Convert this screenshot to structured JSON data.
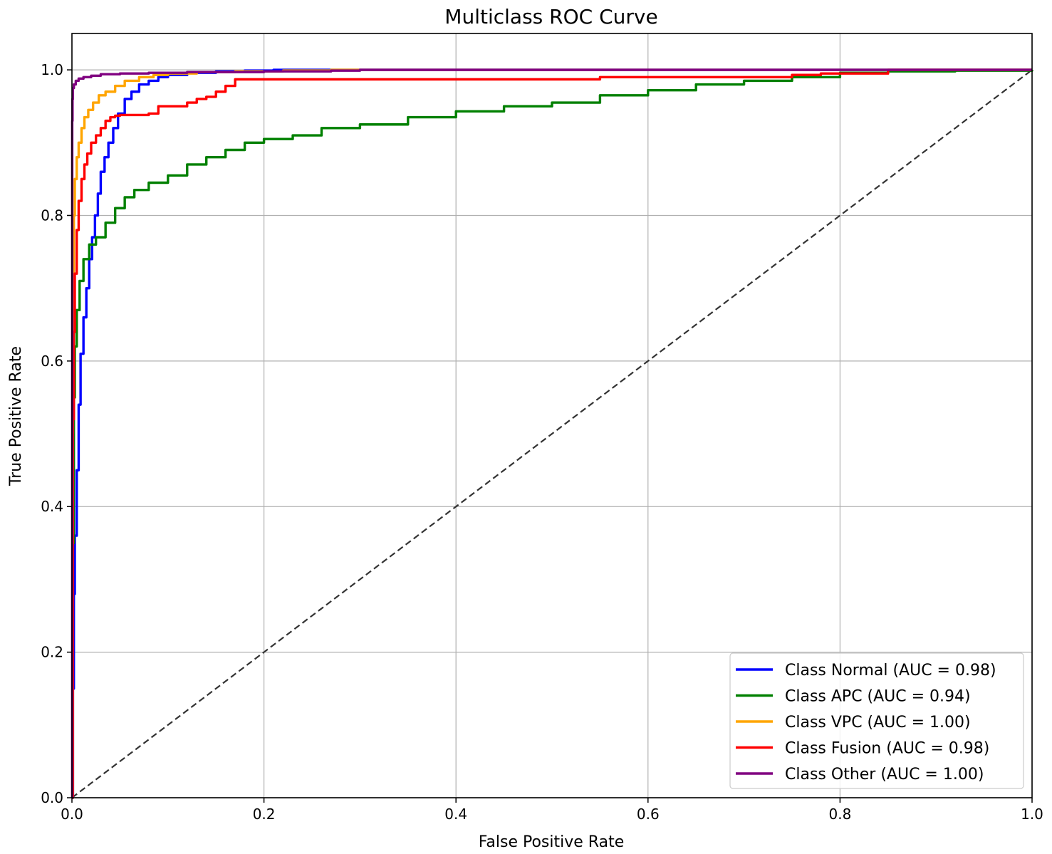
{
  "chart_data": {
    "type": "line",
    "title": "Multiclass ROC Curve",
    "xlabel": "False Positive Rate",
    "ylabel": "True Positive Rate",
    "xlim": [
      0.0,
      1.0
    ],
    "ylim": [
      0.0,
      1.05
    ],
    "xticks": [
      0.0,
      0.2,
      0.4,
      0.6,
      0.8,
      1.0
    ],
    "xtick_labels": [
      "0.0",
      "0.2",
      "0.4",
      "0.6",
      "0.8",
      "1.0"
    ],
    "yticks": [
      0.0,
      0.2,
      0.4,
      0.6,
      0.8,
      1.0
    ],
    "ytick_labels": [
      "0.0",
      "0.2",
      "0.4",
      "0.6",
      "0.8",
      "1.0"
    ],
    "grid": true,
    "legend_position": "lower-right",
    "reference_line": {
      "x": [
        0,
        1
      ],
      "y": [
        0,
        1
      ],
      "style": "dashed",
      "color": "#333333"
    },
    "series": [
      {
        "name": "Class Normal (AUC = 0.98)",
        "color": "#0000ff",
        "x": [
          0,
          0.001,
          0.002,
          0.003,
          0.005,
          0.007,
          0.009,
          0.012,
          0.015,
          0.018,
          0.021,
          0.024,
          0.027,
          0.03,
          0.034,
          0.038,
          0.043,
          0.048,
          0.055,
          0.062,
          0.07,
          0.08,
          0.09,
          0.1,
          0.12,
          0.15,
          0.18,
          0.21,
          0.25,
          0.3,
          0.4,
          1.0
        ],
        "y": [
          0,
          0.15,
          0.28,
          0.36,
          0.45,
          0.54,
          0.61,
          0.66,
          0.7,
          0.74,
          0.77,
          0.8,
          0.83,
          0.86,
          0.88,
          0.9,
          0.92,
          0.94,
          0.96,
          0.97,
          0.98,
          0.985,
          0.99,
          0.993,
          0.996,
          0.998,
          0.999,
          1.0,
          1.0,
          1.0,
          1.0,
          1.0
        ]
      },
      {
        "name": "Class APC (AUC = 0.94)",
        "color": "#008000",
        "x": [
          0,
          0.001,
          0.002,
          0.003,
          0.005,
          0.008,
          0.012,
          0.018,
          0.025,
          0.035,
          0.045,
          0.055,
          0.065,
          0.08,
          0.1,
          0.12,
          0.14,
          0.16,
          0.18,
          0.2,
          0.23,
          0.26,
          0.3,
          0.35,
          0.4,
          0.45,
          0.5,
          0.55,
          0.6,
          0.65,
          0.7,
          0.75,
          0.8,
          0.85,
          0.92,
          1.0
        ],
        "y": [
          0,
          0.35,
          0.55,
          0.62,
          0.67,
          0.71,
          0.74,
          0.76,
          0.77,
          0.79,
          0.81,
          0.825,
          0.835,
          0.845,
          0.855,
          0.87,
          0.88,
          0.89,
          0.9,
          0.905,
          0.91,
          0.92,
          0.925,
          0.935,
          0.943,
          0.95,
          0.955,
          0.965,
          0.972,
          0.98,
          0.985,
          0.99,
          0.996,
          0.998,
          0.999,
          1.0
        ]
      },
      {
        "name": "Class VPC (AUC = 1.00)",
        "color": "#ffa500",
        "x": [
          0,
          0.0005,
          0.001,
          0.002,
          0.003,
          0.005,
          0.007,
          0.01,
          0.013,
          0.017,
          0.022,
          0.028,
          0.035,
          0.045,
          0.055,
          0.07,
          0.085,
          0.1,
          0.13,
          0.17,
          0.22,
          0.27,
          1.0
        ],
        "y": [
          0,
          0.5,
          0.7,
          0.8,
          0.85,
          0.88,
          0.9,
          0.92,
          0.935,
          0.945,
          0.955,
          0.965,
          0.97,
          0.978,
          0.985,
          0.99,
          0.993,
          0.995,
          0.997,
          0.998,
          0.999,
          1.0,
          1.0
        ]
      },
      {
        "name": "Class Fusion (AUC = 0.98)",
        "color": "#ff0000",
        "x": [
          0,
          0.001,
          0.002,
          0.003,
          0.005,
          0.007,
          0.01,
          0.013,
          0.016,
          0.02,
          0.025,
          0.03,
          0.035,
          0.04,
          0.045,
          0.05,
          0.055,
          0.06,
          0.07,
          0.08,
          0.09,
          0.1,
          0.12,
          0.13,
          0.14,
          0.15,
          0.16,
          0.17,
          0.2,
          0.3,
          0.4,
          0.55,
          0.6,
          0.7,
          0.75,
          0.78,
          0.85,
          1.0
        ],
        "y": [
          0,
          0.52,
          0.64,
          0.72,
          0.78,
          0.82,
          0.85,
          0.87,
          0.885,
          0.9,
          0.91,
          0.92,
          0.93,
          0.935,
          0.937,
          0.938,
          0.938,
          0.938,
          0.938,
          0.94,
          0.95,
          0.95,
          0.955,
          0.96,
          0.963,
          0.97,
          0.978,
          0.987,
          0.987,
          0.987,
          0.987,
          0.99,
          0.99,
          0.99,
          0.993,
          0.995,
          1.0,
          1.0
        ]
      },
      {
        "name": "Class Other (AUC = 1.00)",
        "color": "#800080",
        "x": [
          0,
          0.0003,
          0.0006,
          0.001,
          0.002,
          0.004,
          0.007,
          0.012,
          0.02,
          0.03,
          0.05,
          0.08,
          0.12,
          0.2,
          0.27,
          0.3,
          1.0
        ],
        "y": [
          0,
          0.93,
          0.96,
          0.975,
          0.98,
          0.985,
          0.988,
          0.99,
          0.992,
          0.994,
          0.995,
          0.996,
          0.997,
          0.998,
          0.999,
          1.0,
          1.0
        ]
      }
    ]
  }
}
